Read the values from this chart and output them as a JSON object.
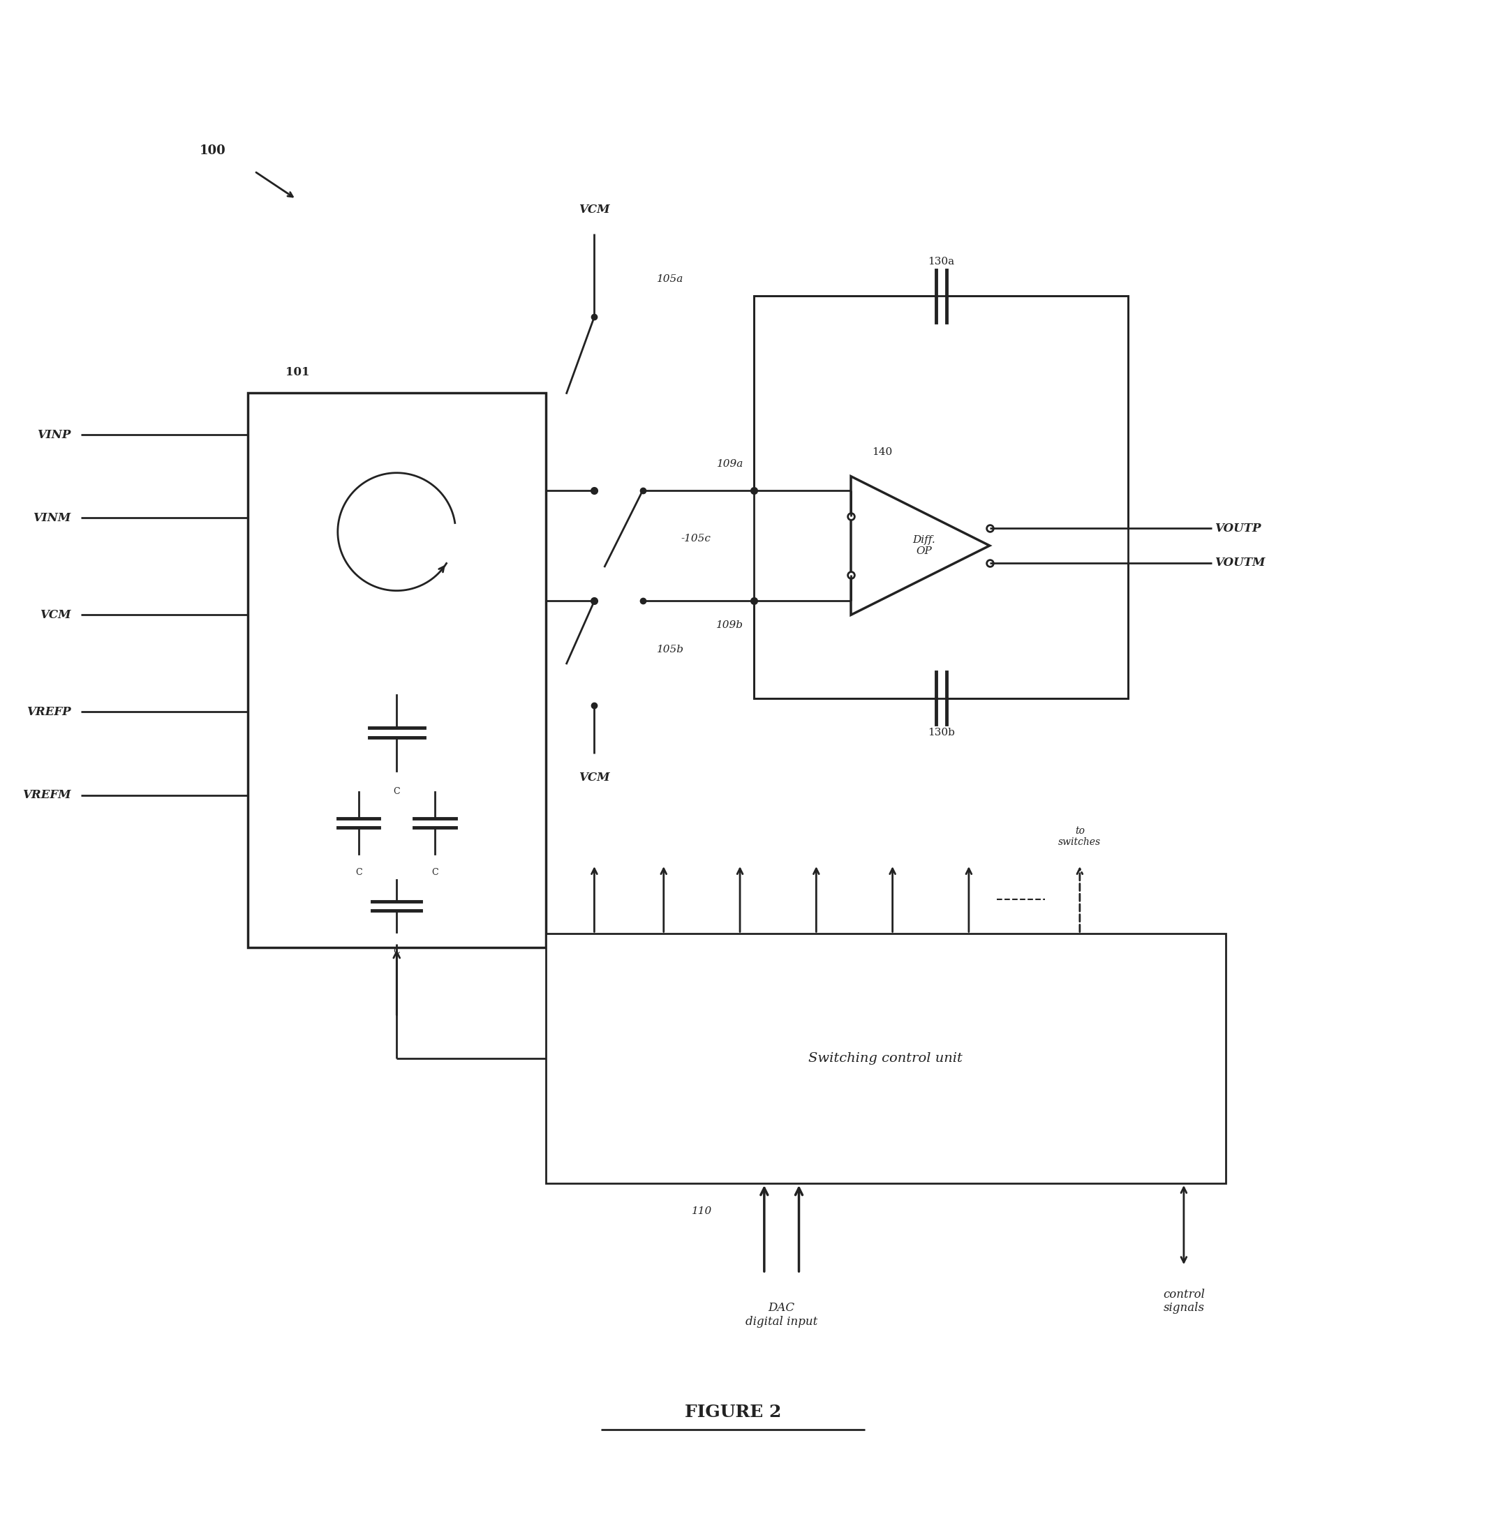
{
  "fig_width": 21.36,
  "fig_height": 21.8,
  "bg_color": "#ffffff",
  "line_color": "#222222",
  "lw": 2.0,
  "title": "FIGURE 2",
  "label_100": "100",
  "label_101": "101",
  "label_105a": "105a",
  "label_105b": "105b",
  "label_105c": "-105c",
  "label_109a": "109a",
  "label_109b": "109b",
  "label_110": "110",
  "label_130a": "130a",
  "label_130b": "130b",
  "label_140": "140",
  "vcm_top": "VCM",
  "vcm_bot": "VCM",
  "vinp": "VINP",
  "vinm": "VINM",
  "vcm_left": "VCM",
  "vrefp": "VREFP",
  "vrefm": "VREFM",
  "voutp": "VOUTP",
  "voutm": "VOUTM",
  "diff_op": "Diff.\nOP",
  "switching": "Switching control unit",
  "dac_label": "DAC\ndigital input",
  "control_label": "control\nsignals",
  "to_switches": "to\nswitches",
  "cap_label": "C"
}
